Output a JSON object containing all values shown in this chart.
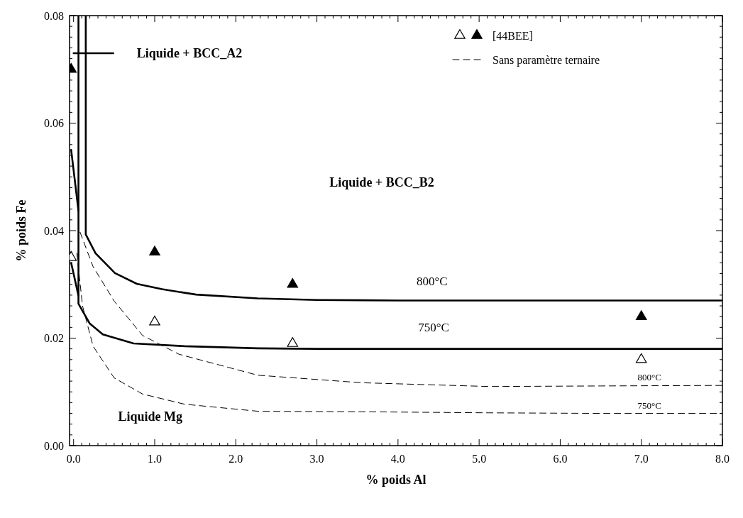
{
  "chart_data": {
    "type": "line",
    "xlabel": "% poids Al",
    "ylabel": "% poids Fe",
    "xlim": [
      -0.05,
      8.0
    ],
    "ylim": [
      0,
      0.08
    ],
    "xticks": [
      {
        "value": 0,
        "label": "0.0"
      },
      {
        "value": 1,
        "label": "1.0"
      },
      {
        "value": 2,
        "label": "2.0"
      },
      {
        "value": 3,
        "label": "3.0"
      },
      {
        "value": 4,
        "label": "4.0"
      },
      {
        "value": 5,
        "label": "5.0"
      },
      {
        "value": 6,
        "label": "6.0"
      },
      {
        "value": 7,
        "label": "7.0"
      },
      {
        "value": 8,
        "label": "8.0"
      }
    ],
    "yticks": [
      {
        "value": 0,
        "label": "0.00"
      },
      {
        "value": 0.02,
        "label": "0.02"
      },
      {
        "value": 0.04,
        "label": "0.04"
      },
      {
        "value": 0.06,
        "label": "0.06"
      },
      {
        "value": 0.08,
        "label": "0.08"
      }
    ],
    "grid": false,
    "legend": "top right",
    "series": [
      {
        "color": "#000000",
        "line_style": "solid",
        "x": [
          0.15,
          0.15,
          0.27,
          0.51,
          0.78,
          1.09,
          1.51,
          2.27,
          3.0,
          4.0,
          5.0,
          6.0,
          7.0,
          8.0
        ],
        "values": [
          0.08,
          0.0393,
          0.0358,
          0.0321,
          0.0301,
          0.0291,
          0.0281,
          0.0274,
          0.0271,
          0.027,
          0.027,
          0.027,
          0.027,
          0.027
        ]
      },
      {
        "color": "#000000",
        "line_style": "solid",
        "x": [
          0.06,
          0.06,
          0.2,
          0.36,
          0.74,
          1.37,
          2.27,
          3.0,
          4.0,
          5.0,
          6.0,
          7.0,
          8.0
        ],
        "values": [
          0.08,
          0.0264,
          0.0227,
          0.0207,
          0.019,
          0.0185,
          0.0181,
          0.018,
          0.018,
          0.018,
          0.018,
          0.018,
          0.018
        ]
      },
      {
        "color": "#000000",
        "line_style": "solid",
        "x": [
          -0.03,
          0.06
        ],
        "values": [
          0.055,
          0.0437
        ]
      },
      {
        "color": "#000000",
        "line_style": "solid",
        "x": [
          -0.03,
          0.06
        ],
        "values": [
          0.034,
          0.0279
        ]
      },
      {
        "color": "#000000",
        "line_style": "solid",
        "x": [
          0.0,
          0.49
        ],
        "values": [
          0.073,
          0.073
        ]
      },
      {
        "type": "scatter",
        "name": "[44BEE]",
        "marker": "triangle",
        "colors": [
          "#000000",
          "#000000",
          "#000000",
          "#000000",
          "#ffffff",
          "#ffffff",
          "#ffffff",
          "#ffffff"
        ],
        "x": [
          -0.03,
          1.0,
          2.7,
          7.0,
          -0.03,
          1.0,
          2.7,
          7.0
        ],
        "values": [
          0.07,
          0.036,
          0.03,
          0.024,
          0.035,
          0.023,
          0.019,
          0.016
        ]
      },
      {
        "name": "Sans paramètre ternaire",
        "color": "#000000",
        "line_style": "dashed",
        "x": [
          0.08,
          0.24,
          0.5,
          0.85,
          1.3,
          2.27,
          3.55,
          5.12,
          6.5,
          8.0
        ],
        "values": [
          0.0397,
          0.0333,
          0.0269,
          0.0205,
          0.017,
          0.0131,
          0.0117,
          0.011,
          0.0111,
          0.0112
        ]
      },
      {
        "color": "#000000",
        "line_style": "dashed",
        "x": [
          0.04,
          0.11,
          0.24,
          0.5,
          0.85,
          1.37,
          2.27,
          3.55,
          5.12,
          6.5,
          8.0
        ],
        "values": [
          0.0358,
          0.026,
          0.0185,
          0.0126,
          0.0096,
          0.0077,
          0.0064,
          0.0063,
          0.0061,
          0.006,
          0.006
        ]
      }
    ],
    "annotations": [
      "Liquide + BCC_A2",
      "Liquide + BCC_B2",
      "Liquide Mg",
      "800°C",
      "750°C",
      "800°C",
      "750°C"
    ]
  }
}
